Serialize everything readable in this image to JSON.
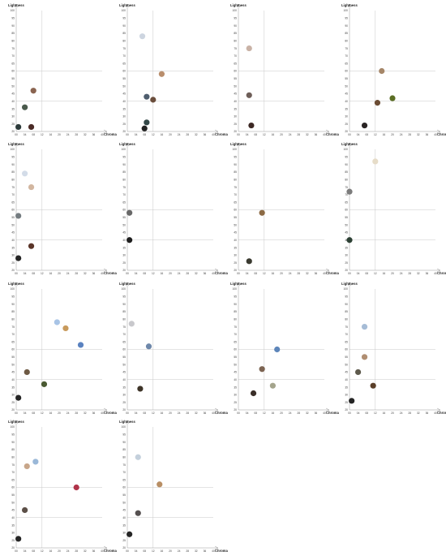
{
  "axes": {
    "ylabel": "Lightness",
    "xlabel": "Chroma",
    "y_ticks": [
      20,
      25,
      30,
      35,
      40,
      45,
      50,
      55,
      60,
      65,
      70,
      75,
      80,
      85,
      90,
      95,
      100
    ],
    "x_ticks": [
      "00",
      "04",
      "08",
      "12",
      "16",
      "20",
      "24",
      "28",
      "32",
      "36",
      "40"
    ],
    "ylim": [
      20,
      100
    ],
    "xlim": [
      0,
      40
    ],
    "reference_lines": {
      "x": 12,
      "y": [
        40,
        60
      ]
    }
  },
  "chart_data": [
    {
      "type": "scatter",
      "points": [
        {
          "x": 1,
          "y": 23,
          "color": "#2c3a3a"
        },
        {
          "x": 4,
          "y": 36,
          "color": "#4a5a4c"
        },
        {
          "x": 7,
          "y": 23,
          "color": "#4a2a26"
        },
        {
          "x": 8,
          "y": 47,
          "color": "#8a6450"
        }
      ]
    },
    {
      "type": "scatter",
      "points": [
        {
          "x": 7,
          "y": 83,
          "color": "#cdd5e0"
        },
        {
          "x": 16,
          "y": 58,
          "color": "#b98e6c"
        },
        {
          "x": 9,
          "y": 43,
          "color": "#4f5e6e"
        },
        {
          "x": 12,
          "y": 41,
          "color": "#6b4e3c"
        },
        {
          "x": 9,
          "y": 26,
          "color": "#344848"
        },
        {
          "x": 8,
          "y": 22,
          "color": "#222222"
        }
      ]
    },
    {
      "type": "scatter",
      "points": [
        {
          "x": 5,
          "y": 75,
          "color": "#c9b2a6"
        },
        {
          "x": 5,
          "y": 44,
          "color": "#6e5e58"
        },
        {
          "x": 6,
          "y": 24,
          "color": "#3c2824"
        }
      ]
    },
    {
      "type": "scatter",
      "points": [
        {
          "x": 15,
          "y": 60,
          "color": "#a58668"
        },
        {
          "x": 20,
          "y": 42,
          "color": "#5b6e24"
        },
        {
          "x": 13,
          "y": 39,
          "color": "#6b4c34"
        },
        {
          "x": 7,
          "y": 24,
          "color": "#2a2424"
        }
      ]
    },
    {
      "type": "scatter",
      "points": [
        {
          "x": 4,
          "y": 84,
          "color": "#d3dce8"
        },
        {
          "x": 7,
          "y": 75,
          "color": "#d2b6a0"
        },
        {
          "x": 1,
          "y": 56,
          "color": "#747c80"
        },
        {
          "x": 7,
          "y": 36,
          "color": "#5a3428"
        },
        {
          "x": 1,
          "y": 28,
          "color": "#252525"
        }
      ]
    },
    {
      "type": "scatter",
      "points": [
        {
          "x": 1,
          "y": 58,
          "color": "#686868"
        },
        {
          "x": 1,
          "y": 40,
          "color": "#1e1e1e"
        }
      ]
    },
    {
      "type": "scatter",
      "points": [
        {
          "x": 11,
          "y": 58,
          "color": "#8c6a44"
        },
        {
          "x": 5,
          "y": 26,
          "color": "#3a3a30"
        }
      ]
    },
    {
      "type": "scatter",
      "points": [
        {
          "x": 12,
          "y": 92,
          "color": "#e6dcc8"
        },
        {
          "x": 0,
          "y": 72,
          "color": "#7c7c7c"
        },
        {
          "x": 0,
          "y": 40,
          "color": "#2c4034"
        }
      ]
    },
    {
      "type": "scatter",
      "points": [
        {
          "x": 19,
          "y": 78,
          "color": "#a8c4e6"
        },
        {
          "x": 23,
          "y": 74,
          "color": "#c89a5c"
        },
        {
          "x": 30,
          "y": 63,
          "color": "#5a82c0"
        },
        {
          "x": 5,
          "y": 45,
          "color": "#6e5a44"
        },
        {
          "x": 13,
          "y": 37,
          "color": "#4a5a32"
        },
        {
          "x": 1,
          "y": 28,
          "color": "#252525"
        }
      ]
    },
    {
      "type": "scatter",
      "points": [
        {
          "x": 2,
          "y": 77,
          "color": "#c8c8cc"
        },
        {
          "x": 10,
          "y": 62,
          "color": "#6e88aa"
        },
        {
          "x": 6,
          "y": 34,
          "color": "#3e3428"
        }
      ]
    },
    {
      "type": "scatter",
      "points": [
        {
          "x": 18,
          "y": 60,
          "color": "#5e86ba"
        },
        {
          "x": 11,
          "y": 47,
          "color": "#7c6452"
        },
        {
          "x": 16,
          "y": 36,
          "color": "#a4a48c"
        },
        {
          "x": 7,
          "y": 31,
          "color": "#3a2e28"
        }
      ]
    },
    {
      "type": "scatter",
      "points": [
        {
          "x": 7,
          "y": 75,
          "color": "#a6bcd6"
        },
        {
          "x": 7,
          "y": 55,
          "color": "#b08e72"
        },
        {
          "x": 4,
          "y": 45,
          "color": "#5e5a4c"
        },
        {
          "x": 11,
          "y": 36,
          "color": "#5a3e28"
        },
        {
          "x": 1,
          "y": 26,
          "color": "#252525"
        }
      ]
    },
    {
      "type": "scatter",
      "points": [
        {
          "x": 9,
          "y": 77,
          "color": "#9ab8d8"
        },
        {
          "x": 5,
          "y": 74,
          "color": "#c8a68a"
        },
        {
          "x": 28,
          "y": 60,
          "color": "#b0344a"
        },
        {
          "x": 4,
          "y": 45,
          "color": "#5c5048"
        },
        {
          "x": 1,
          "y": 26,
          "color": "#252525"
        }
      ]
    },
    {
      "type": "scatter",
      "points": [
        {
          "x": 5,
          "y": 80,
          "color": "#c4d0dc"
        },
        {
          "x": 15,
          "y": 62,
          "color": "#b88e64"
        },
        {
          "x": 5,
          "y": 43,
          "color": "#555050"
        },
        {
          "x": 1,
          "y": 29,
          "color": "#252525"
        }
      ]
    }
  ]
}
